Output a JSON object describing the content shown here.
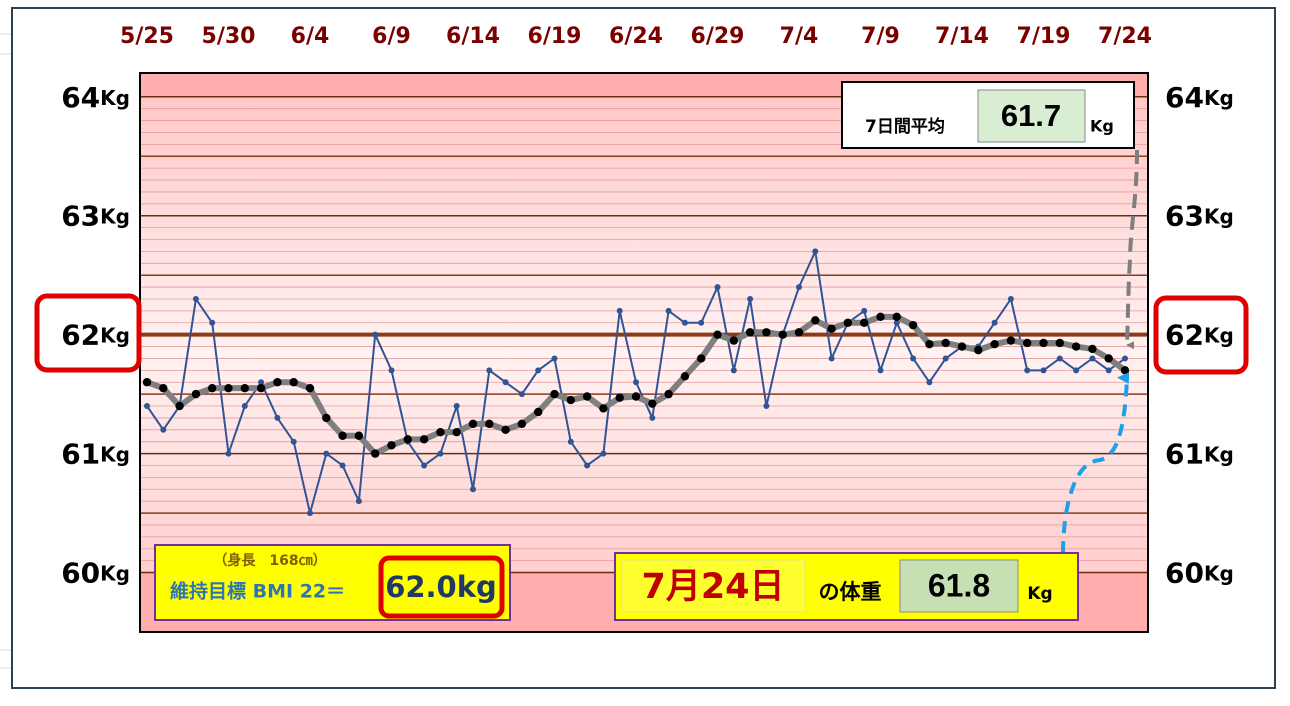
{
  "chart_data": {
    "type": "line",
    "categories": [
      "5/25",
      null,
      null,
      null,
      null,
      "5/30",
      null,
      null,
      null,
      null,
      "6/4",
      null,
      null,
      null,
      null,
      "6/9",
      null,
      null,
      null,
      null,
      "6/14",
      null,
      null,
      null,
      null,
      "6/19",
      null,
      null,
      null,
      null,
      "6/24",
      null,
      null,
      null,
      null,
      "6/29",
      null,
      null,
      null,
      null,
      "7/4",
      null,
      null,
      null,
      null,
      "7/9",
      null,
      null,
      null,
      null,
      "7/14",
      null,
      null,
      null,
      null,
      "7/19",
      null,
      null,
      null,
      null,
      "7/24"
    ],
    "y_unit": "Kg",
    "ylim": [
      59.5,
      64.2
    ],
    "yticks": [
      60,
      61,
      62,
      63,
      64
    ],
    "series": [
      {
        "color": "#2f5597",
        "values": [
          61.4,
          61.2,
          61.4,
          62.3,
          62.1,
          61.0,
          61.4,
          61.6,
          61.3,
          61.1,
          60.5,
          61.0,
          60.9,
          60.6,
          62.0,
          61.7,
          61.1,
          60.9,
          61.0,
          61.4,
          60.7,
          61.7,
          61.6,
          61.5,
          61.7,
          61.8,
          61.1,
          60.9,
          61.0,
          62.2,
          61.6,
          61.3,
          62.2,
          62.1,
          62.1,
          62.4,
          61.7,
          62.3,
          61.4,
          62.0,
          62.4,
          62.7,
          61.8,
          62.1,
          62.2,
          61.7,
          62.1,
          61.8,
          61.6,
          61.8,
          61.9,
          61.9,
          62.1,
          62.3,
          61.7,
          61.7,
          61.8,
          61.7,
          61.8,
          61.7,
          61.8
        ]
      },
      {
        "color": "#7f7f7f",
        "values": [
          61.6,
          61.55,
          61.4,
          61.5,
          61.55,
          61.55,
          61.55,
          61.55,
          61.6,
          61.6,
          61.55,
          61.3,
          61.15,
          61.15,
          61.0,
          61.07,
          61.12,
          61.12,
          61.18,
          61.18,
          61.25,
          61.25,
          61.2,
          61.25,
          61.35,
          61.5,
          61.45,
          61.48,
          61.38,
          61.47,
          61.48,
          61.42,
          61.5,
          61.65,
          61.8,
          62.0,
          61.95,
          62.02,
          62.02,
          62.0,
          62.02,
          62.12,
          62.05,
          62.1,
          62.1,
          62.15,
          62.15,
          62.08,
          61.92,
          61.93,
          61.9,
          61.87,
          61.92,
          61.95,
          61.93,
          61.93,
          61.93,
          61.9,
          61.88,
          61.8,
          61.7
        ]
      }
    ],
    "average_box": {
      "label": "7日間平均",
      "unit": "Kg"
    },
    "target_box": {
      "height_note": "（身長　168㎝）",
      "label": "維持目標 BMI 22＝",
      "target": {
        "value": 62,
        "label": "62.0kg"
      }
    },
    "today_box": {
      "date": "7月24日",
      "label": "の体重",
      "unit": "Kg"
    }
  }
}
